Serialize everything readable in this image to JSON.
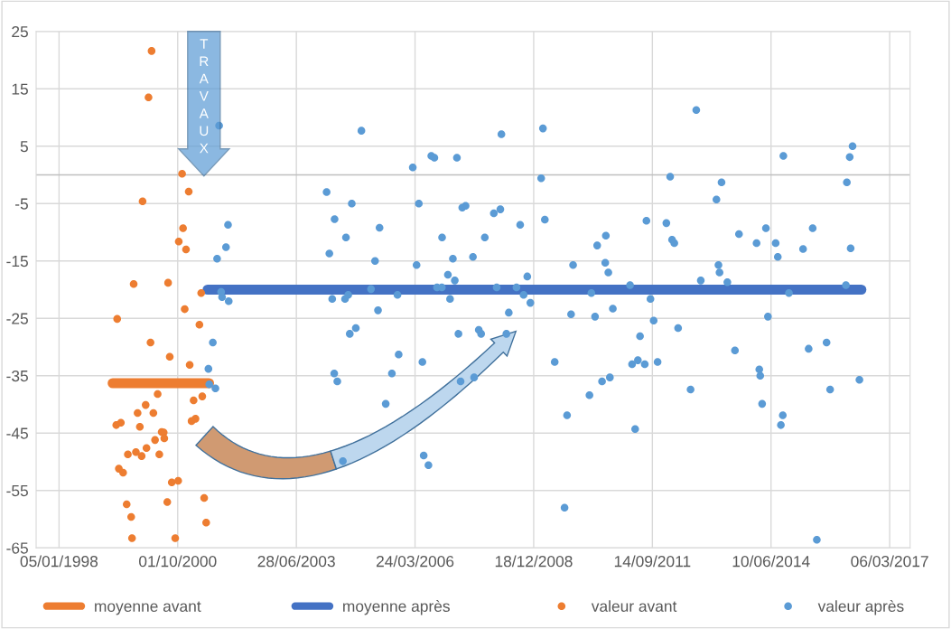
{
  "chart_data": {
    "type": "scatter",
    "xlim": [
      "1997-06-26",
      "2017-08-25"
    ],
    "xticks": [
      {
        "value": "1998-01-05",
        "label": "05/01/1998"
      },
      {
        "value": "2000-10-01",
        "label": "01/10/2000"
      },
      {
        "value": "2003-06-28",
        "label": "28/06/2003"
      },
      {
        "value": "2006-03-24",
        "label": "24/03/2006"
      },
      {
        "value": "2008-12-18",
        "label": "18/12/2008"
      },
      {
        "value": "2011-09-14",
        "label": "14/09/2011"
      },
      {
        "value": "2014-06-10",
        "label": "10/06/2014"
      },
      {
        "value": "2017-03-06",
        "label": "06/03/2017"
      }
    ],
    "ylim": [
      -65,
      25
    ],
    "yticks": [
      -65,
      -55,
      -45,
      -35,
      -25,
      -15,
      -5,
      5,
      15,
      25
    ],
    "grid": true,
    "legend": "bottom",
    "ref_lines": [
      {
        "axis": "y",
        "value": 0,
        "color": "#bfbfbf"
      }
    ],
    "annotations": [
      "TRAVAUX"
    ],
    "series": [
      {
        "name": "moyenne avant",
        "type": "line",
        "color": "#ed7d31",
        "marker": "none",
        "x": [
          "1999-04-02",
          "2001-06-22"
        ],
        "values": [
          -36.3,
          -36.3
        ]
      },
      {
        "name": "moyenne après",
        "type": "line",
        "color": "#4472c4",
        "marker": "none",
        "x": [
          "2001-06-10",
          "2016-07-10"
        ],
        "values": [
          -20.0,
          -20.0
        ]
      },
      {
        "name": "valeur avant",
        "color": "#ed7d31",
        "marker": "circle",
        "x": [
          "2000-02-24",
          "2000-01-29",
          "2000-11-07",
          "2001-01-02",
          "1999-12-10",
          "2000-11-15",
          "2000-10-10",
          "2000-12-10",
          "1999-09-26",
          "2000-07-12",
          "2001-04-17",
          "2000-11-29",
          "1999-05-10",
          "2001-04-02",
          "2000-02-15",
          "2000-07-26",
          "2001-01-10",
          "2000-04-15",
          "2001-04-26",
          "2001-02-12",
          "2000-01-05",
          "1999-10-29",
          "2000-03-10",
          "2001-02-28",
          "2001-01-26",
          "1999-05-02",
          "1999-06-10",
          "1999-11-17",
          "2000-05-19",
          "2000-06-05",
          "2000-06-10",
          "2000-03-24",
          "2000-01-12",
          "1999-08-08",
          "1999-10-15",
          "1999-12-02",
          "2000-04-29",
          "1999-05-24",
          "1999-06-29",
          "2000-08-12",
          "2000-10-05",
          "1999-07-29",
          "2000-07-05",
          "2001-05-12",
          "1999-09-05",
          "2001-05-29",
          "1999-09-12",
          "2000-09-10"
        ],
        "values": [
          21.6,
          13.5,
          0.2,
          -2.9,
          -4.6,
          -9.3,
          -11.6,
          -13.0,
          -19.0,
          -18.8,
          -20.6,
          -23.4,
          -25.1,
          -26.1,
          -29.2,
          -31.7,
          -33.1,
          -38.2,
          -38.6,
          -39.3,
          -40.1,
          -41.5,
          -41.5,
          -42.5,
          -42.9,
          -43.6,
          -43.2,
          -43.9,
          -44.8,
          -44.9,
          -45.9,
          -46.2,
          -47.6,
          -48.7,
          -48.3,
          -49.0,
          -48.7,
          -51.2,
          -51.9,
          -53.6,
          -53.3,
          -57.4,
          -57.0,
          -56.3,
          -59.6,
          -60.6,
          -63.3,
          -63.3
        ]
      },
      {
        "name": "valeur après",
        "color": "#5b9bd5",
        "marker": "circle",
        "x": [
          "2001-09-15",
          "2001-11-29",
          "2001-11-12",
          "2001-08-29",
          "2001-10-02",
          "2001-10-10",
          "2001-12-05",
          "2001-07-24",
          "2001-06-17",
          "2001-06-24",
          "2001-08-15",
          "2004-12-27",
          "2008-03-21",
          "2006-08-08",
          "2006-09-03",
          "2007-03-12",
          "2006-03-05",
          "2004-03-09",
          "2004-10-07",
          "2006-04-25",
          "2007-04-26",
          "2007-05-24",
          "2008-01-17",
          "2008-03-12",
          "2004-05-15",
          "2005-05-29",
          "2004-08-19",
          "2006-11-07",
          "2007-11-02",
          "2004-04-01",
          "2007-02-06",
          "2007-07-25",
          "2005-04-21",
          "2006-04-06",
          "2006-12-26",
          "2007-02-22",
          "2005-03-18",
          "2006-09-25",
          "2006-11-05",
          "2008-02-10",
          "2004-09-07",
          "2004-08-11",
          "2004-04-25",
          "2005-10-27",
          "2007-01-13",
          "2005-05-16",
          "2004-11-10",
          "2004-09-20",
          "2007-03-25",
          "2007-09-12",
          "2007-10-02",
          "2008-05-02",
          "2005-11-06",
          "2006-05-25",
          "2004-05-12",
          "2005-09-10",
          "2004-06-07",
          "2007-04-12",
          "2007-08-04",
          "2005-07-20",
          "2004-07-24",
          "2006-06-05",
          "2006-07-15",
          "2009-03-06",
          "2012-09-18",
          "2009-02-19",
          "2012-02-11",
          "2008-08-26",
          "2009-03-22",
          "2011-07-26",
          "2012-01-10",
          "2010-08-18",
          "2010-06-06",
          "2012-02-27",
          "2012-03-17",
          "2009-11-15",
          "2010-08-13",
          "2010-09-08",
          "2012-10-26",
          "2008-10-25",
          "2008-07-26",
          "2008-09-24",
          "2008-11-20",
          "2010-04-18",
          "2011-03-10",
          "2011-08-29",
          "2008-05-22",
          "2009-10-29",
          "2010-05-19",
          "2010-10-16",
          "2011-09-25",
          "2012-04-18",
          "2011-06-02",
          "2009-06-13",
          "2011-03-27",
          "2011-05-15",
          "2011-07-12",
          "2011-10-28",
          "2010-09-21",
          "2010-07-17",
          "2012-08-01",
          "2010-04-02",
          "2009-09-25",
          "2011-04-22",
          "2009-09-04",
          "2016-04-27",
          "2016-04-03",
          "2014-09-22",
          "2013-04-19",
          "2016-03-10",
          "2013-03-07",
          "2013-09-13",
          "2014-04-28",
          "2015-05-27",
          "2014-02-08",
          "2014-07-19",
          "2014-08-06",
          "2015-03-07",
          "2016-04-11",
          "2013-03-24",
          "2013-04-02",
          "2013-06-07",
          "2016-03-02",
          "2014-11-08",
          "2014-05-15",
          "2013-08-10",
          "2015-04-23",
          "2015-09-21",
          "2014-03-03",
          "2014-03-11",
          "2016-06-24",
          "2015-10-21",
          "2014-03-27",
          "2014-09-17",
          "2014-09-01",
          "2015-07-01"
        ],
        "values": [
          8.6,
          -8.7,
          -12.6,
          -14.6,
          -20.4,
          -21.3,
          -22.0,
          -29.2,
          -33.8,
          -36.5,
          -37.2,
          7.7,
          7.1,
          3.3,
          3.0,
          3.0,
          1.3,
          -3.0,
          -5.0,
          -5.0,
          -5.7,
          -5.4,
          -6.7,
          -6.0,
          -7.7,
          -9.2,
          -10.9,
          -10.9,
          -10.9,
          -13.7,
          -14.6,
          -14.3,
          -15.0,
          -15.7,
          -17.4,
          -18.4,
          -19.9,
          -19.6,
          -19.6,
          -19.6,
          -20.9,
          -21.6,
          -21.6,
          -20.9,
          -21.6,
          -23.6,
          -26.7,
          -27.7,
          -27.7,
          -27.0,
          -27.7,
          -27.7,
          -31.3,
          -32.6,
          -34.6,
          -34.6,
          -36.0,
          -36.0,
          -35.3,
          -39.9,
          -49.9,
          -48.9,
          -50.6,
          8.1,
          11.3,
          -0.6,
          -0.3,
          -8.7,
          -7.8,
          -8.0,
          -8.4,
          -10.6,
          -12.3,
          -11.3,
          -11.9,
          -15.7,
          -15.3,
          -17.0,
          -18.4,
          -17.7,
          -19.6,
          -20.9,
          -22.3,
          -20.6,
          -19.2,
          -21.6,
          -24.0,
          -24.3,
          -24.7,
          -23.3,
          -25.4,
          -26.7,
          -28.1,
          -32.6,
          -33.0,
          -32.3,
          -33.0,
          -32.6,
          -35.3,
          -36.0,
          -37.4,
          -38.4,
          -41.9,
          -44.3,
          -58.0,
          5.0,
          3.1,
          3.3,
          -1.3,
          -1.3,
          -4.3,
          -10.3,
          -9.3,
          -9.3,
          -11.9,
          -11.9,
          -14.3,
          -12.9,
          -12.8,
          -15.7,
          -17.0,
          -18.7,
          -19.2,
          -20.6,
          -24.7,
          -30.6,
          -30.3,
          -29.2,
          -33.9,
          -35.0,
          -35.7,
          -37.4,
          -39.9,
          -41.9,
          -43.6,
          -63.6
        ]
      }
    ]
  }
}
